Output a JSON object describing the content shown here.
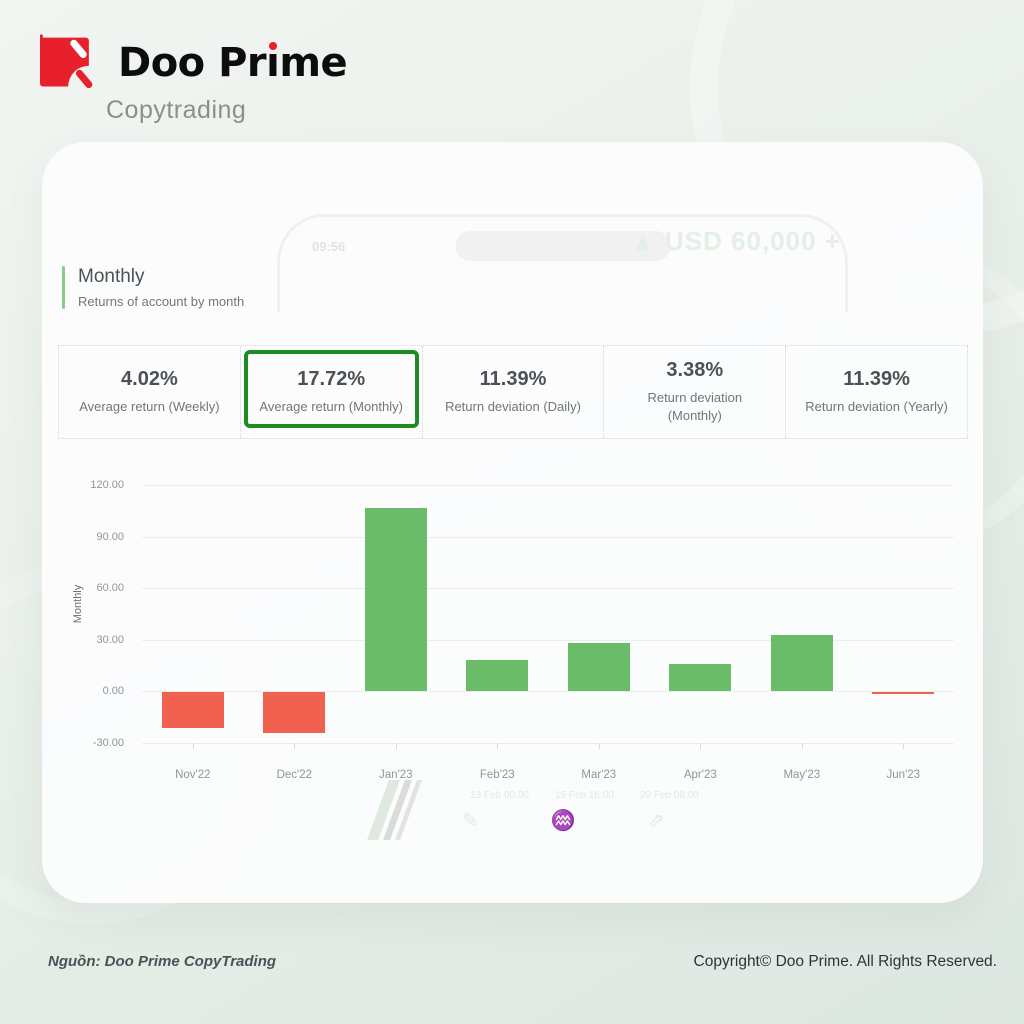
{
  "logo": {
    "brand": "Doo Prime",
    "brand_pre": "Doo Pr",
    "brand_i": "ı",
    "brand_post": "me",
    "subtitle": "Copytrading",
    "accent_color": "#e8202d"
  },
  "watermark": {
    "time": "09:56",
    "balance": "▲ USD 60,000 +",
    "dates": [
      "13 Feb 00:00",
      "15 Feb 16:00",
      "20 Feb 08:00"
    ]
  },
  "section": {
    "title": "Monthly",
    "subtitle": "Returns of account by month"
  },
  "stats": {
    "highlight_border_color": "#1e8b26",
    "items": [
      {
        "value": "4.02%",
        "label": "Average return (Weekly)",
        "highlighted": false
      },
      {
        "value": "17.72%",
        "label": "Average return (Monthly)",
        "highlighted": true
      },
      {
        "value": "11.39%",
        "label": "Return deviation (Daily)",
        "highlighted": false
      },
      {
        "value": "3.38%",
        "label": "Return deviation\n(Monthly)",
        "highlighted": false
      },
      {
        "value": "11.39%",
        "label": "Return deviation (Yearly)",
        "highlighted": false
      }
    ]
  },
  "chart_data": {
    "type": "bar",
    "categories": [
      "Nov'22",
      "Dec'22",
      "Jan'23",
      "Feb'23",
      "Mar'23",
      "Apr'23",
      "May'23",
      "Jun'23"
    ],
    "values": [
      -21,
      -24,
      107,
      18,
      28,
      16,
      33,
      -1
    ],
    "title": "Monthly",
    "xlabel": "",
    "ylabel": "Monthly",
    "yticks": [
      120,
      90,
      60,
      30,
      0,
      -30
    ],
    "ytick_labels": [
      "120.00",
      "90.00",
      "60.00",
      "30.00",
      "0.00",
      "-30.00"
    ],
    "ylim": [
      -36,
      130
    ],
    "grid": true,
    "legend": false,
    "colors": {
      "positive": "#6abc69",
      "negative": "#f0624f"
    }
  },
  "footer": {
    "source": "Nguồn: Doo Prime CopyTrading",
    "copyright": "Copyright© Doo Prime. All Rights Reserved."
  }
}
